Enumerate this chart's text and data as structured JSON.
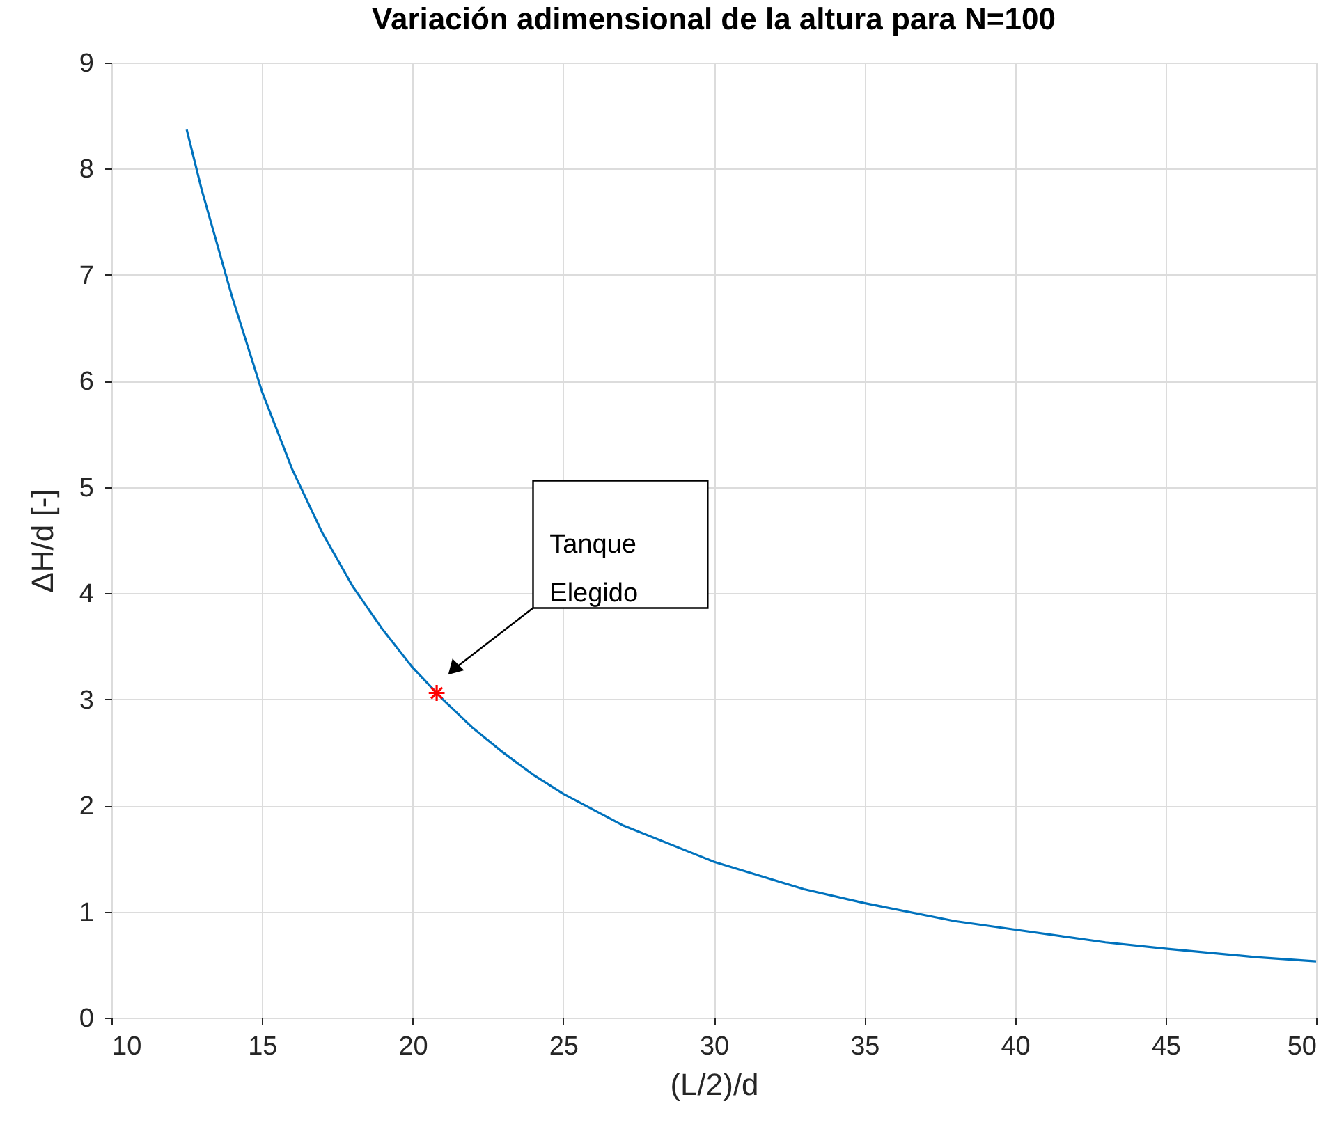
{
  "chart_data": {
    "type": "line",
    "title": "Variación adimensional de la altura para N=100",
    "xlabel": "(L/2)/d",
    "ylabel": "ΔH/d [-]",
    "xlim": [
      10,
      50
    ],
    "xticks": [
      10,
      15,
      20,
      25,
      30,
      35,
      40,
      45,
      50
    ],
    "ylim": [
      0,
      9
    ],
    "yticks": [
      0,
      1,
      2,
      3,
      4,
      5,
      6,
      7,
      8,
      9
    ],
    "grid": true,
    "series": [
      {
        "type": "line",
        "color": "#0072bd",
        "marker": "none",
        "x": [
          12.5,
          13,
          14,
          15,
          16,
          17,
          18,
          19,
          20,
          21,
          22,
          23,
          24,
          25,
          27,
          30,
          33,
          35,
          38,
          40,
          43,
          45,
          48,
          50
        ],
        "values": [
          8.37,
          7.8,
          6.8,
          5.9,
          5.17,
          4.57,
          4.07,
          3.66,
          3.3,
          3.0,
          2.73,
          2.5,
          2.29,
          2.11,
          1.81,
          1.47,
          1.21,
          1.08,
          0.91,
          0.83,
          0.71,
          0.65,
          0.57,
          0.53
        ]
      },
      {
        "type": "scatter",
        "color": "#ff0000",
        "marker": "cross",
        "x": [
          20.8
        ],
        "values": [
          3.06
        ]
      }
    ],
    "annotations": [
      "Tanque Elegido"
    ]
  }
}
